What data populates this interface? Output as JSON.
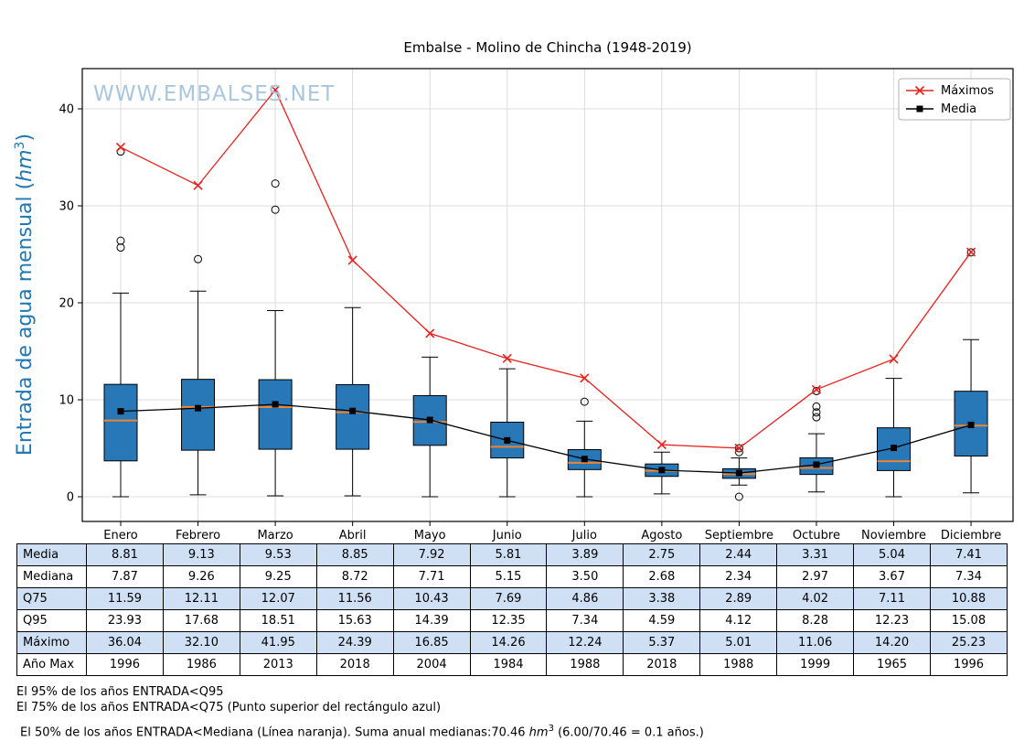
{
  "colors": {
    "box_fill": "#2878b8",
    "box_edge": "#000000",
    "median": "#ef8430",
    "maximos": "#e8211f",
    "media": "#000000",
    "grid": "#d3d3d3",
    "axis": "#000000",
    "ylabel": "#1f77b4",
    "watermark": "#a9c6dd",
    "table_alt_row": "#cfe0f4",
    "legend_border": "#b0b0b0"
  },
  "chart_data": {
    "type": "boxplot+line",
    "title": "Embalse - Molino de Chincha (1948-2019)",
    "watermark": "WWW.EMBALSES.NET",
    "ylabel": "Entrada de agua mensual (hm³)",
    "ylabel_parts": {
      "prefix": "Entrada de agua mensual (",
      "unit": "hm",
      "sup": "3",
      "suffix": ")"
    },
    "grid": true,
    "legend_position": "top-right",
    "categories": [
      "Enero",
      "Febrero",
      "Marzo",
      "Abril",
      "Mayo",
      "Junio",
      "Julio",
      "Agosto",
      "Septiembre",
      "Octubre",
      "Noviembre",
      "Diciembre"
    ],
    "yticks": [
      0,
      10,
      20,
      30,
      40
    ],
    "ylim": [
      -2.5,
      44
    ],
    "series": [
      {
        "name": "Máximos",
        "type": "line",
        "marker": "x",
        "color": "#e8211f",
        "values": [
          36.04,
          32.1,
          41.95,
          24.39,
          16.85,
          14.26,
          12.24,
          5.37,
          5.01,
          11.06,
          14.2,
          25.23
        ]
      },
      {
        "name": "Media",
        "type": "line",
        "marker": "square",
        "color": "#000000",
        "values": [
          8.81,
          9.13,
          9.53,
          8.85,
          7.92,
          5.81,
          3.89,
          2.75,
          2.44,
          3.31,
          5.04,
          7.41
        ]
      }
    ],
    "boxplot": [
      {
        "category": "Enero",
        "q1": 3.7,
        "median": 7.87,
        "q3": 11.59,
        "whisker_low": 0.0,
        "whisker_high": 21.0,
        "outliers": [
          25.7,
          26.4,
          35.6
        ]
      },
      {
        "category": "Febrero",
        "q1": 4.8,
        "median": 9.26,
        "q3": 12.11,
        "whisker_low": 0.2,
        "whisker_high": 21.2,
        "outliers": [
          24.5
        ]
      },
      {
        "category": "Marzo",
        "q1": 4.9,
        "median": 9.25,
        "q3": 12.07,
        "whisker_low": 0.1,
        "whisker_high": 19.2,
        "outliers": [
          29.6,
          32.3
        ]
      },
      {
        "category": "Abril",
        "q1": 4.9,
        "median": 8.72,
        "q3": 11.56,
        "whisker_low": 0.1,
        "whisker_high": 19.5,
        "outliers": []
      },
      {
        "category": "Mayo",
        "q1": 5.3,
        "median": 7.71,
        "q3": 10.43,
        "whisker_low": 0.0,
        "whisker_high": 14.4,
        "outliers": []
      },
      {
        "category": "Junio",
        "q1": 4.0,
        "median": 5.15,
        "q3": 7.69,
        "whisker_low": 0.0,
        "whisker_high": 13.2,
        "outliers": []
      },
      {
        "category": "Julio",
        "q1": 2.8,
        "median": 3.5,
        "q3": 4.86,
        "whisker_low": 0.0,
        "whisker_high": 7.8,
        "outliers": [
          9.8
        ]
      },
      {
        "category": "Agosto",
        "q1": 2.1,
        "median": 2.68,
        "q3": 3.38,
        "whisker_low": 0.3,
        "whisker_high": 4.6,
        "outliers": []
      },
      {
        "category": "Septiembre",
        "q1": 1.9,
        "median": 2.34,
        "q3": 2.89,
        "whisker_low": 1.2,
        "whisker_high": 4.0,
        "outliers": [
          4.6,
          5.0,
          0.0
        ]
      },
      {
        "category": "Octubre",
        "q1": 2.3,
        "median": 2.97,
        "q3": 4.02,
        "whisker_low": 0.5,
        "whisker_high": 6.5,
        "outliers": [
          8.2,
          8.7,
          9.3,
          10.9
        ]
      },
      {
        "category": "Noviembre",
        "q1": 2.7,
        "median": 3.67,
        "q3": 7.11,
        "whisker_low": 0.0,
        "whisker_high": 12.2,
        "outliers": []
      },
      {
        "category": "Diciembre",
        "q1": 4.2,
        "median": 7.34,
        "q3": 10.88,
        "whisker_low": 0.4,
        "whisker_high": 16.2,
        "outliers": [
          25.2
        ]
      }
    ]
  },
  "table": {
    "columns": [
      "Enero",
      "Febrero",
      "Marzo",
      "Abril",
      "Mayo",
      "Junio",
      "Julio",
      "Agosto",
      "Septiembre",
      "Octubre",
      "Noviembre",
      "Diciembre"
    ],
    "rows": [
      {
        "label": "Media",
        "values": [
          "8.81",
          "9.13",
          "9.53",
          "8.85",
          "7.92",
          "5.81",
          "3.89",
          "2.75",
          "2.44",
          "3.31",
          "5.04",
          "7.41"
        ]
      },
      {
        "label": "Mediana",
        "values": [
          "7.87",
          "9.26",
          "9.25",
          "8.72",
          "7.71",
          "5.15",
          "3.50",
          "2.68",
          "2.34",
          "2.97",
          "3.67",
          "7.34"
        ]
      },
      {
        "label": "Q75",
        "values": [
          "11.59",
          "12.11",
          "12.07",
          "11.56",
          "10.43",
          "7.69",
          "4.86",
          "3.38",
          "2.89",
          "4.02",
          "7.11",
          "10.88"
        ]
      },
      {
        "label": "Q95",
        "values": [
          "23.93",
          "17.68",
          "18.51",
          "15.63",
          "14.39",
          "12.35",
          "7.34",
          "4.59",
          "4.12",
          "8.28",
          "12.23",
          "15.08"
        ]
      },
      {
        "label": "Máximo",
        "values": [
          "36.04",
          "32.10",
          "41.95",
          "24.39",
          "16.85",
          "14.26",
          "12.24",
          "5.37",
          "5.01",
          "11.06",
          "14.20",
          "25.23"
        ]
      },
      {
        "label": "Año Max",
        "values": [
          "1996",
          "1986",
          "2013",
          "2018",
          "2004",
          "1984",
          "1988",
          "2018",
          "1988",
          "1999",
          "1965",
          "1996"
        ]
      }
    ]
  },
  "footnotes": [
    "El 95% de los años ENTRADA<Q95",
    "El 75% de los años ENTRADA<Q75 (Punto superior del rectángulo azul)"
  ],
  "footnote3": {
    "prefix": "El 50% de los años ENTRADA<Mediana (Línea naranja). Suma anual medianas:70.46 ",
    "unit": "hm",
    "sup": "3",
    "suffix": " (6.00/70.46 = 0.1 años.)"
  }
}
